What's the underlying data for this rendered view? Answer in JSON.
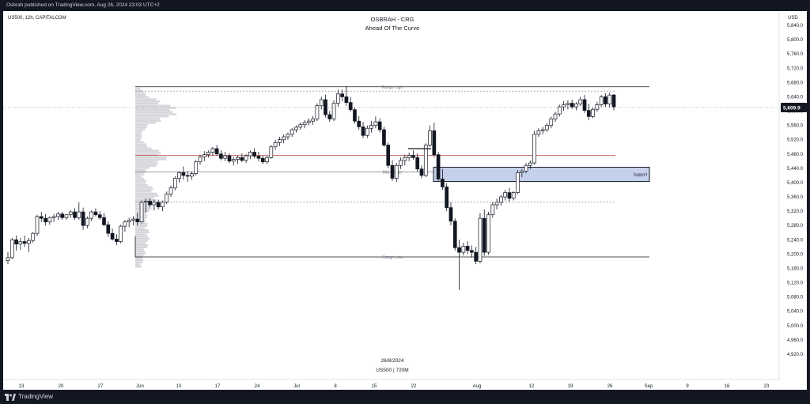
{
  "publisher_line": "Osbrah published on TradingView.com, Aug 26, 2024 23:03 UTC+2",
  "symbol_line": "US500, 12h, CAPITALCOM",
  "currency": "USD",
  "brand": "TradingView",
  "chart_data": {
    "type": "candlestick",
    "title": "OSBRAH - CRG",
    "subtitle": "Ahead Of The Curve",
    "watermark_date": "26/8/2024",
    "watermark_symbol": "US500 | 720M",
    "current_price": "5,609.9",
    "y_ticks": [
      "5,840.0",
      "5,800.0",
      "5,760.0",
      "5,720.0",
      "5,680.0",
      "5,640.0",
      "5,600.0",
      "5,560.0",
      "5,520.0",
      "5,480.0",
      "5,440.0",
      "5,400.0",
      "5,360.0",
      "5,320.0",
      "5,280.0",
      "5,240.0",
      "5,200.0",
      "5,160.0",
      "5,120.0",
      "5,080.0",
      "5,040.0",
      "5,000.0",
      "4,960.0",
      "4,920.0"
    ],
    "y_tick_values": [
      5840,
      5800,
      5760,
      5720,
      5680,
      5640,
      5600,
      5560,
      5520,
      5480,
      5440,
      5400,
      5360,
      5320,
      5280,
      5240,
      5200,
      5160,
      5120,
      5080,
      5040,
      5000,
      4960,
      4920
    ],
    "ylim": [
      4915,
      5865
    ],
    "x_ticks": [
      "13",
      "20",
      "27",
      "Jun",
      "10",
      "17",
      "24",
      "Jul",
      "8",
      "15",
      "22",
      "Aug",
      "12",
      "19",
      "26",
      "Sep",
      "9",
      "16",
      "23"
    ],
    "levels": [
      {
        "name": "Range High",
        "value": 5668
      },
      {
        "name": "Mid Range",
        "value": 5430
      },
      {
        "name": "Range Low",
        "value": 5192
      },
      {
        "name": "",
        "value": 5476
      },
      {
        "name": "",
        "value": 5656
      },
      {
        "name": "",
        "value": 5345
      }
    ],
    "zone": {
      "label": "Support",
      "top": 5443,
      "bottom": 5403
    },
    "candles": [
      [
        5182,
        5206,
        5172,
        5190
      ],
      [
        5190,
        5245,
        5186,
        5240
      ],
      [
        5240,
        5252,
        5210,
        5228
      ],
      [
        5228,
        5245,
        5212,
        5235
      ],
      [
        5235,
        5252,
        5220,
        5230
      ],
      [
        5230,
        5245,
        5205,
        5238
      ],
      [
        5238,
        5262,
        5232,
        5258
      ],
      [
        5258,
        5310,
        5250,
        5305
      ],
      [
        5305,
        5318,
        5290,
        5300
      ],
      [
        5300,
        5312,
        5280,
        5290
      ],
      [
        5290,
        5306,
        5282,
        5302
      ],
      [
        5302,
        5312,
        5290,
        5305
      ],
      [
        5305,
        5318,
        5296,
        5312
      ],
      [
        5312,
        5318,
        5296,
        5302
      ],
      [
        5302,
        5312,
        5296,
        5310
      ],
      [
        5310,
        5322,
        5302,
        5318
      ],
      [
        5318,
        5328,
        5296,
        5302
      ],
      [
        5302,
        5345,
        5296,
        5318
      ],
      [
        5318,
        5330,
        5268,
        5280
      ],
      [
        5280,
        5305,
        5272,
        5300
      ],
      [
        5300,
        5322,
        5292,
        5318
      ],
      [
        5318,
        5328,
        5305,
        5310
      ],
      [
        5310,
        5320,
        5296,
        5302
      ],
      [
        5302,
        5315,
        5278,
        5282
      ],
      [
        5282,
        5292,
        5248,
        5258
      ],
      [
        5258,
        5272,
        5238,
        5242
      ],
      [
        5242,
        5255,
        5225,
        5235
      ],
      [
        5235,
        5282,
        5230,
        5278
      ],
      [
        5278,
        5295,
        5262,
        5290
      ],
      [
        5290,
        5302,
        5275,
        5295
      ],
      [
        5295,
        5306,
        5280,
        5298
      ],
      [
        5298,
        5316,
        5280,
        5290
      ],
      [
        5290,
        5350,
        5286,
        5345
      ],
      [
        5345,
        5355,
        5315,
        5348
      ],
      [
        5348,
        5356,
        5330,
        5338
      ],
      [
        5338,
        5352,
        5322,
        5345
      ],
      [
        5345,
        5352,
        5325,
        5332
      ],
      [
        5332,
        5350,
        5320,
        5345
      ],
      [
        5345,
        5375,
        5340,
        5368
      ],
      [
        5368,
        5392,
        5360,
        5385
      ],
      [
        5385,
        5418,
        5378,
        5412
      ],
      [
        5412,
        5432,
        5400,
        5428
      ],
      [
        5428,
        5445,
        5408,
        5420
      ],
      [
        5420,
        5432,
        5402,
        5418
      ],
      [
        5418,
        5430,
        5408,
        5425
      ],
      [
        5425,
        5462,
        5420,
        5458
      ],
      [
        5458,
        5478,
        5450,
        5472
      ],
      [
        5472,
        5488,
        5460,
        5478
      ],
      [
        5478,
        5490,
        5470,
        5485
      ],
      [
        5485,
        5500,
        5476,
        5495
      ],
      [
        5495,
        5505,
        5476,
        5480
      ],
      [
        5480,
        5490,
        5462,
        5468
      ],
      [
        5468,
        5486,
        5460,
        5475
      ],
      [
        5475,
        5482,
        5455,
        5460
      ],
      [
        5460,
        5472,
        5448,
        5465
      ],
      [
        5465,
        5476,
        5452,
        5470
      ],
      [
        5470,
        5482,
        5458,
        5462
      ],
      [
        5462,
        5480,
        5455,
        5475
      ],
      [
        5475,
        5490,
        5466,
        5485
      ],
      [
        5485,
        5496,
        5468,
        5474
      ],
      [
        5474,
        5486,
        5460,
        5468
      ],
      [
        5468,
        5476,
        5452,
        5458
      ],
      [
        5458,
        5475,
        5452,
        5470
      ],
      [
        5470,
        5505,
        5466,
        5500
      ],
      [
        5500,
        5520,
        5492,
        5512
      ],
      [
        5512,
        5528,
        5502,
        5520
      ],
      [
        5520,
        5535,
        5510,
        5528
      ],
      [
        5528,
        5540,
        5520,
        5535
      ],
      [
        5535,
        5552,
        5528,
        5548
      ],
      [
        5548,
        5560,
        5540,
        5555
      ],
      [
        5555,
        5568,
        5548,
        5562
      ],
      [
        5562,
        5575,
        5552,
        5568
      ],
      [
        5568,
        5580,
        5560,
        5572
      ],
      [
        5572,
        5586,
        5562,
        5578
      ],
      [
        5578,
        5622,
        5572,
        5615
      ],
      [
        5615,
        5640,
        5605,
        5632
      ],
      [
        5632,
        5646,
        5582,
        5590
      ],
      [
        5590,
        5600,
        5570,
        5578
      ],
      [
        5578,
        5630,
        5572,
        5622
      ],
      [
        5622,
        5660,
        5612,
        5648
      ],
      [
        5648,
        5660,
        5628,
        5640
      ],
      [
        5640,
        5670,
        5615,
        5624
      ],
      [
        5624,
        5640,
        5598,
        5604
      ],
      [
        5604,
        5610,
        5565,
        5572
      ],
      [
        5572,
        5586,
        5548,
        5556
      ],
      [
        5556,
        5570,
        5524,
        5532
      ],
      [
        5532,
        5560,
        5525,
        5552
      ],
      [
        5552,
        5572,
        5540,
        5560
      ],
      [
        5560,
        5585,
        5552,
        5570
      ],
      [
        5570,
        5580,
        5540,
        5548
      ],
      [
        5548,
        5556,
        5500,
        5505
      ],
      [
        5505,
        5512,
        5440,
        5448
      ],
      [
        5448,
        5462,
        5405,
        5412
      ],
      [
        5412,
        5455,
        5402,
        5448
      ],
      [
        5448,
        5470,
        5438,
        5462
      ],
      [
        5462,
        5478,
        5448,
        5470
      ],
      [
        5470,
        5484,
        5460,
        5476
      ],
      [
        5476,
        5490,
        5464,
        5470
      ],
      [
        5470,
        5482,
        5430,
        5438
      ],
      [
        5438,
        5448,
        5412,
        5420
      ],
      [
        5420,
        5510,
        5415,
        5505
      ],
      [
        5505,
        5560,
        5500,
        5545
      ],
      [
        5545,
        5568,
        5470,
        5478
      ],
      [
        5478,
        5486,
        5404,
        5410
      ],
      [
        5410,
        5438,
        5380,
        5388
      ],
      [
        5388,
        5398,
        5320,
        5330
      ],
      [
        5330,
        5345,
        5280,
        5292
      ],
      [
        5292,
        5300,
        5210,
        5218
      ],
      [
        5218,
        5240,
        5100,
        5205
      ],
      [
        5205,
        5232,
        5196,
        5222
      ],
      [
        5222,
        5236,
        5200,
        5210
      ],
      [
        5210,
        5224,
        5190,
        5205
      ],
      [
        5205,
        5220,
        5172,
        5180
      ],
      [
        5180,
        5315,
        5174,
        5300
      ],
      [
        5300,
        5325,
        5195,
        5205
      ],
      [
        5205,
        5318,
        5198,
        5310
      ],
      [
        5310,
        5345,
        5302,
        5338
      ],
      [
        5338,
        5355,
        5325,
        5345
      ],
      [
        5345,
        5366,
        5336,
        5360
      ],
      [
        5360,
        5380,
        5350,
        5372
      ],
      [
        5372,
        5385,
        5345,
        5356
      ],
      [
        5356,
        5376,
        5350,
        5372
      ],
      [
        5372,
        5435,
        5368,
        5428
      ],
      [
        5428,
        5438,
        5415,
        5432
      ],
      [
        5432,
        5455,
        5426,
        5448
      ],
      [
        5448,
        5462,
        5438,
        5455
      ],
      [
        5455,
        5545,
        5450,
        5535
      ],
      [
        5535,
        5552,
        5528,
        5545
      ],
      [
        5545,
        5556,
        5535,
        5548
      ],
      [
        5548,
        5566,
        5542,
        5560
      ],
      [
        5560,
        5585,
        5552,
        5578
      ],
      [
        5578,
        5598,
        5570,
        5592
      ],
      [
        5592,
        5618,
        5585,
        5612
      ],
      [
        5612,
        5628,
        5600,
        5618
      ],
      [
        5618,
        5630,
        5605,
        5622
      ],
      [
        5622,
        5632,
        5606,
        5612
      ],
      [
        5612,
        5625,
        5602,
        5620
      ],
      [
        5620,
        5640,
        5614,
        5632
      ],
      [
        5632,
        5645,
        5595,
        5602
      ],
      [
        5602,
        5620,
        5575,
        5585
      ],
      [
        5585,
        5610,
        5580,
        5605
      ],
      [
        5605,
        5626,
        5598,
        5618
      ],
      [
        5618,
        5645,
        5612,
        5640
      ],
      [
        5640,
        5650,
        5612,
        5620
      ],
      [
        5620,
        5652,
        5610,
        5645
      ],
      [
        5645,
        5648,
        5602,
        5612
      ]
    ]
  }
}
